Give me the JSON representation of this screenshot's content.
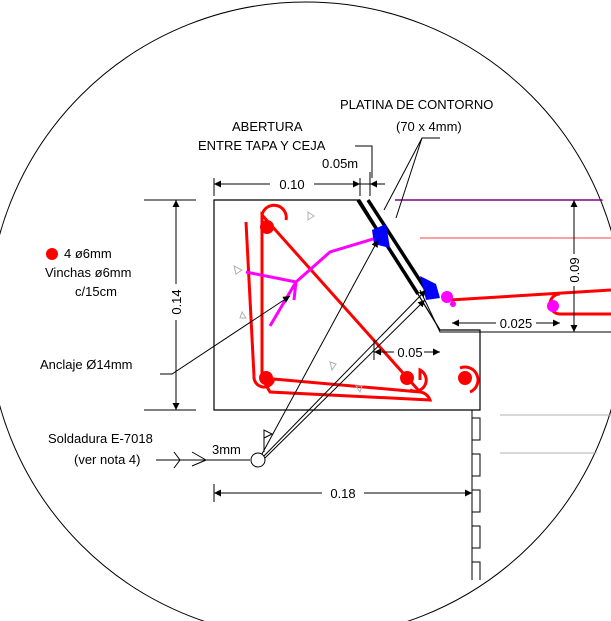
{
  "labels": {
    "platina": "PLATINA DE CONTORNO",
    "platina_size": "(70 x 4mm)",
    "abertura": "ABERTURA",
    "entre_tapa": "ENTRE TAPA Y CEJA",
    "gap_dim": "0.05m",
    "legend_bars": "4 ø6mm",
    "legend_vinchas": "Vinchas ø6mm",
    "legend_spacing": "c/15cm",
    "anclaje": "Anclaje Ø14mm",
    "soldadura": "Soldadura E-7018",
    "ver_nota": "(ver nota 4)",
    "weld_size": "3mm"
  },
  "dimensions": {
    "d_010": "0.10",
    "d_014": "0.14",
    "d_005": "0.05",
    "d_0025": "0.025",
    "d_009": "0.09",
    "d_018": "0.18"
  },
  "colors": {
    "rebar": "#ff0000",
    "anchor": "#ff00ff",
    "weld": "#0000ff",
    "plate": "#000000",
    "outline": "#000000",
    "purple_line": "#800080"
  }
}
